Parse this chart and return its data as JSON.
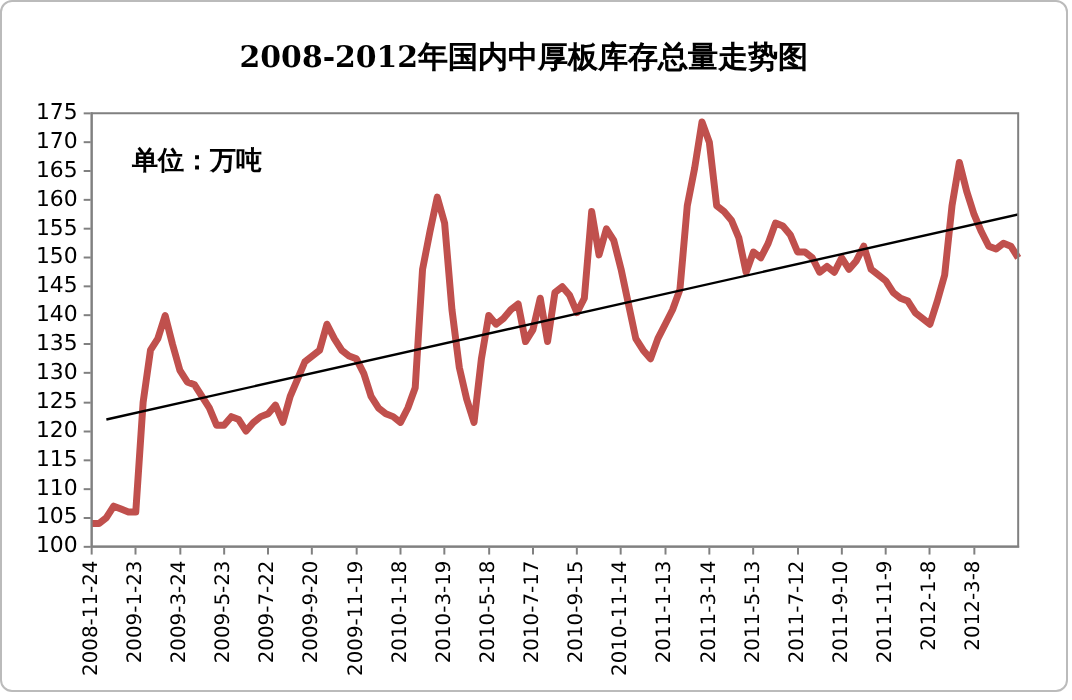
{
  "chart_data": {
    "type": "line",
    "title": "2008-2012年国内中厚板库存总量走势图",
    "annotations": [
      "单位：万吨"
    ],
    "categories": [
      "2008-11-24",
      null,
      null,
      null,
      null,
      null,
      "2009-1-23",
      null,
      null,
      null,
      null,
      null,
      "2009-3-24",
      null,
      null,
      null,
      null,
      null,
      "2009-5-23",
      null,
      null,
      null,
      null,
      null,
      "2009-7-22",
      null,
      null,
      null,
      null,
      null,
      "2009-9-20",
      null,
      null,
      null,
      null,
      null,
      "2009-11-19",
      null,
      null,
      null,
      null,
      null,
      "2010-1-18",
      null,
      null,
      null,
      null,
      null,
      "2010-3-19",
      null,
      null,
      null,
      null,
      null,
      "2010-5-18",
      null,
      null,
      null,
      null,
      null,
      "2010-7-17",
      null,
      null,
      null,
      null,
      null,
      "2010-9-15",
      null,
      null,
      null,
      null,
      null,
      "2010-11-14",
      null,
      null,
      null,
      null,
      null,
      "2011-1-13",
      null,
      null,
      null,
      null,
      null,
      "2011-3-14",
      null,
      null,
      null,
      null,
      null,
      "2011-5-13",
      null,
      null,
      null,
      null,
      null,
      "2011-7-12",
      null,
      null,
      null,
      null,
      null,
      "2011-9-10",
      null,
      null,
      null,
      null,
      null,
      "2011-11-9",
      null,
      null,
      null,
      null,
      null,
      "2012-1-8",
      null,
      null,
      null,
      null,
      null,
      "2012-3-8",
      null,
      null,
      null,
      null,
      null,
      null
    ],
    "series": [
      {
        "color": "#c0504d",
        "values": [
          104,
          104,
          105,
          107,
          106.5,
          106,
          106,
          125,
          134,
          136,
          140,
          135,
          130.5,
          128.5,
          128,
          126,
          124,
          121,
          121,
          122.5,
          122,
          120,
          121.5,
          122.5,
          123,
          124.5,
          121.5,
          126,
          129,
          132,
          133,
          134,
          138.5,
          136,
          134,
          133,
          132.5,
          130,
          126,
          124,
          123,
          122.5,
          121.5,
          124,
          127.5,
          148,
          154.5,
          160.5,
          156,
          141,
          131,
          125.5,
          121.5,
          132.5,
          140,
          138.5,
          139.5,
          141,
          142,
          135.5,
          137.5,
          143,
          135.5,
          144,
          145,
          143.5,
          140.5,
          143,
          158,
          150.5,
          155,
          153,
          148,
          142,
          136,
          134,
          132.5,
          136,
          138.5,
          141,
          144.5,
          159,
          165.5,
          173.5,
          170,
          159,
          158,
          156.5,
          153.5,
          147.5,
          151,
          150,
          152.5,
          156,
          155.5,
          154,
          151,
          151,
          150,
          147.5,
          148.5,
          147.5,
          150,
          148,
          149.5,
          152,
          148,
          147,
          146,
          144,
          143,
          142.5,
          140.5,
          139.5,
          138.5,
          142.5,
          147,
          159,
          166.5,
          161.5,
          157.5,
          154.5,
          152,
          151.5,
          152.5,
          152,
          150
        ]
      },
      {
        "type": "line",
        "color": "#000000",
        "values": [
          null,
          null,
          122,
          null,
          null,
          null,
          null,
          null,
          null,
          null,
          null,
          null,
          null,
          null,
          null,
          null,
          null,
          null,
          null,
          null,
          null,
          null,
          null,
          null,
          null,
          null,
          null,
          null,
          null,
          null,
          null,
          null,
          null,
          null,
          null,
          null,
          null,
          null,
          null,
          null,
          null,
          null,
          null,
          null,
          null,
          null,
          null,
          null,
          null,
          null,
          null,
          null,
          null,
          null,
          null,
          null,
          null,
          null,
          null,
          null,
          null,
          null,
          null,
          null,
          null,
          null,
          null,
          null,
          null,
          null,
          null,
          null,
          null,
          null,
          null,
          null,
          null,
          null,
          null,
          null,
          null,
          null,
          null,
          null,
          null,
          null,
          null,
          null,
          null,
          null,
          null,
          null,
          null,
          null,
          null,
          null,
          null,
          null,
          null,
          null,
          null,
          null,
          null,
          null,
          null,
          null,
          null,
          null,
          null,
          null,
          null,
          null,
          null,
          null,
          null,
          null,
          null,
          null,
          null,
          null,
          null,
          null,
          null,
          null,
          null,
          null,
          157.5
        ]
      }
    ],
    "ylim": [
      100,
      175
    ],
    "yticks": [
      100,
      105,
      110,
      115,
      120,
      125,
      130,
      135,
      140,
      145,
      150,
      155,
      160,
      165,
      170,
      175
    ],
    "grid": false,
    "legend": false,
    "marker": "none",
    "line_style": "solid"
  }
}
